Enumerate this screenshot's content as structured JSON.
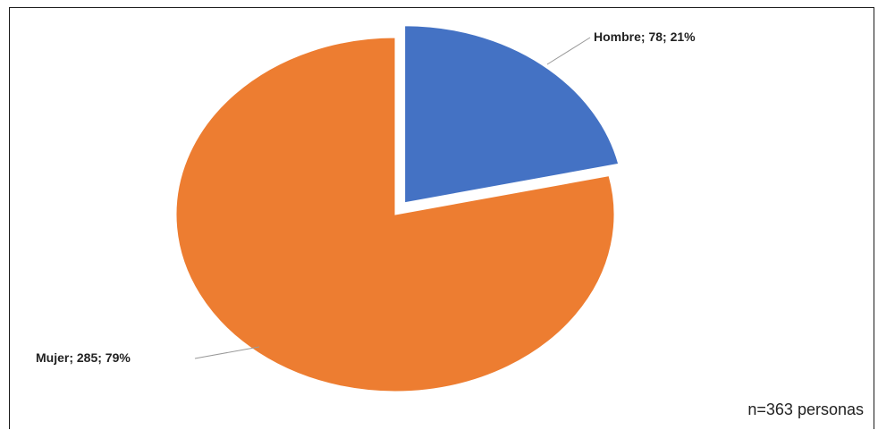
{
  "chart_data": {
    "type": "pie",
    "title": "",
    "slices": [
      {
        "label": "Hombre",
        "value": 78,
        "percent": 21,
        "color": "#4472C4",
        "exploded": true
      },
      {
        "label": "Mujer",
        "value": 285,
        "percent": 79,
        "color": "#ED7D31",
        "exploded": false
      }
    ],
    "data_labels": [
      "Hombre; 78; 21%",
      "Mujer; 285; 79%"
    ],
    "legend": "none",
    "note": "n=363 personas"
  }
}
